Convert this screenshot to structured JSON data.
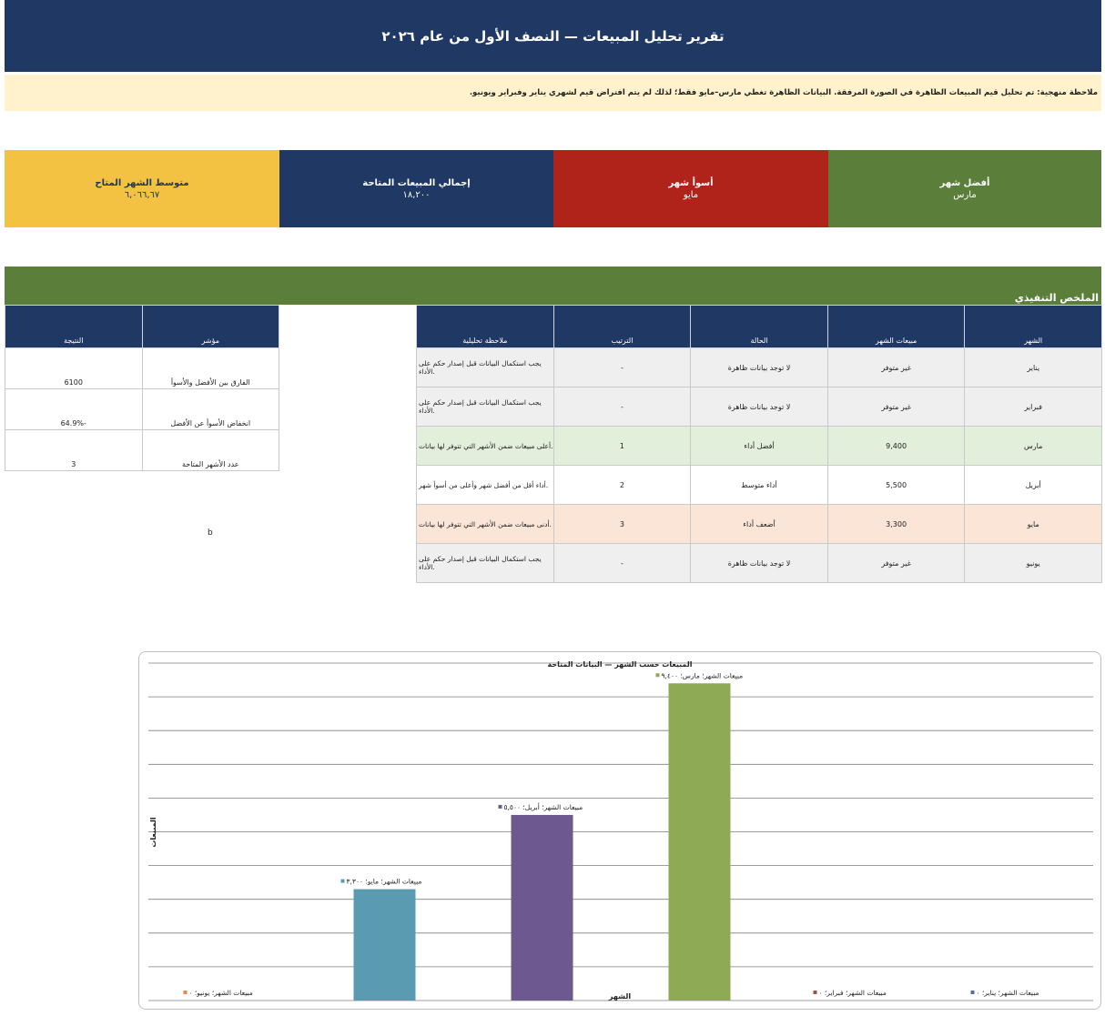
{
  "header": {
    "title": "تقرير تحليل المبيعات — النصف الأول من عام ٢٠٢٦"
  },
  "note": {
    "text": "ملاحظة منهجية: تم تحليل قيم المبيعات الظاهرة في الصورة المرفقة. البيانات الظاهرة تغطي مارس–مايو فقط؛ لذلك لم يتم افتراض قيم لشهري يناير وفبراير ويونيو."
  },
  "kpis": [
    {
      "label": "أفضل شهر",
      "value": "مارس",
      "color": "#5b7f3b"
    },
    {
      "label": "أسوأ شهر",
      "value": "مايو",
      "color": "#b0231a"
    },
    {
      "label": "إجمالي المبيعات المتاحة",
      "value": "١٨,٢٠٠",
      "color": "#1f3864"
    },
    {
      "label": "متوسط الشهر المتاح",
      "value": "٦,٠٦٦,٦٧",
      "color": "#f4c242"
    }
  ],
  "exec_summary": {
    "title": "الملخص التنفيذي"
  },
  "main_table": {
    "headers": [
      "الشهر",
      "مبيعات الشهر",
      "الحالة",
      "الترتيب",
      "ملاحظة تحليلية"
    ],
    "rows": [
      {
        "month": "يناير",
        "sales": "غير متوفر",
        "status": "لا توجد بيانات ظاهرة",
        "rank": "-",
        "note": "يجب استكمال البيانات قبل إصدار حكم على الأداء.",
        "style": "gray"
      },
      {
        "month": "فبراير",
        "sales": "غير متوفر",
        "status": "لا توجد بيانات ظاهرة",
        "rank": "-",
        "note": "يجب استكمال البيانات قبل إصدار حكم على الأداء.",
        "style": "gray"
      },
      {
        "month": "مارس",
        "sales": "9,400",
        "status": "أفضل أداء",
        "rank": "1",
        "note": "أعلى مبيعات ضمن الأشهر التي تتوفر لها بيانات.",
        "style": "green"
      },
      {
        "month": "أبريل",
        "sales": "5,500",
        "status": "أداء متوسط",
        "rank": "2",
        "note": "أداء أقل من أفضل شهر وأعلى من أسوأ شهر.",
        "style": "white"
      },
      {
        "month": "مايو",
        "sales": "3,300",
        "status": "أضعف أداء",
        "rank": "3",
        "note": "أدنى مبيعات ضمن الأشهر التي تتوفر لها بيانات.",
        "style": "pink"
      },
      {
        "month": "يونيو",
        "sales": "غير متوفر",
        "status": "لا توجد بيانات ظاهرة",
        "rank": "-",
        "note": "يجب استكمال البيانات قبل إصدار حكم على الأداء.",
        "style": "gray"
      }
    ]
  },
  "indicator_table": {
    "headers": [
      "مؤشر",
      "النتيجة"
    ],
    "rows": [
      {
        "indicator": "الفارق بين الأفضل والأسوأ",
        "result": "6100"
      },
      {
        "indicator": "انخفاض الأسوأ عن الأفضل",
        "result": "-64.9%"
      },
      {
        "indicator": "عدد الأشهر المتاحة",
        "result": "3"
      }
    ]
  },
  "stray_text": "b",
  "chart_data": {
    "type": "bar",
    "title": "المبيعات حسب الشهر — البيانات المتاحة",
    "xlabel": "الشهر",
    "ylabel": "المبيعات",
    "ylim": [
      0,
      10000
    ],
    "grid": true,
    "categories": [
      "يناير",
      "فبراير",
      "مارس",
      "أبريل",
      "مايو",
      "يونيو"
    ],
    "values": [
      0,
      0,
      9400,
      5500,
      3300,
      0
    ],
    "colors": [
      "#4f6fa8",
      "#b04a48",
      "#8faa55",
      "#6e5890",
      "#5b9bb2",
      "#e08a50"
    ],
    "data_labels": [
      "مبيعات الشهر؛ يناير؛ ٠",
      "مبيعات الشهر؛ فبراير؛ ٠",
      "مبيعات الشهر؛ مارس؛ ٩,٤٠٠",
      "مبيعات الشهر؛ أبريل؛ ٥,٥٠٠",
      "مبيعات الشهر؛ مايو؛ ٣,٣٠٠",
      "مبيعات الشهر؛ يونيو؛ ٠"
    ]
  }
}
